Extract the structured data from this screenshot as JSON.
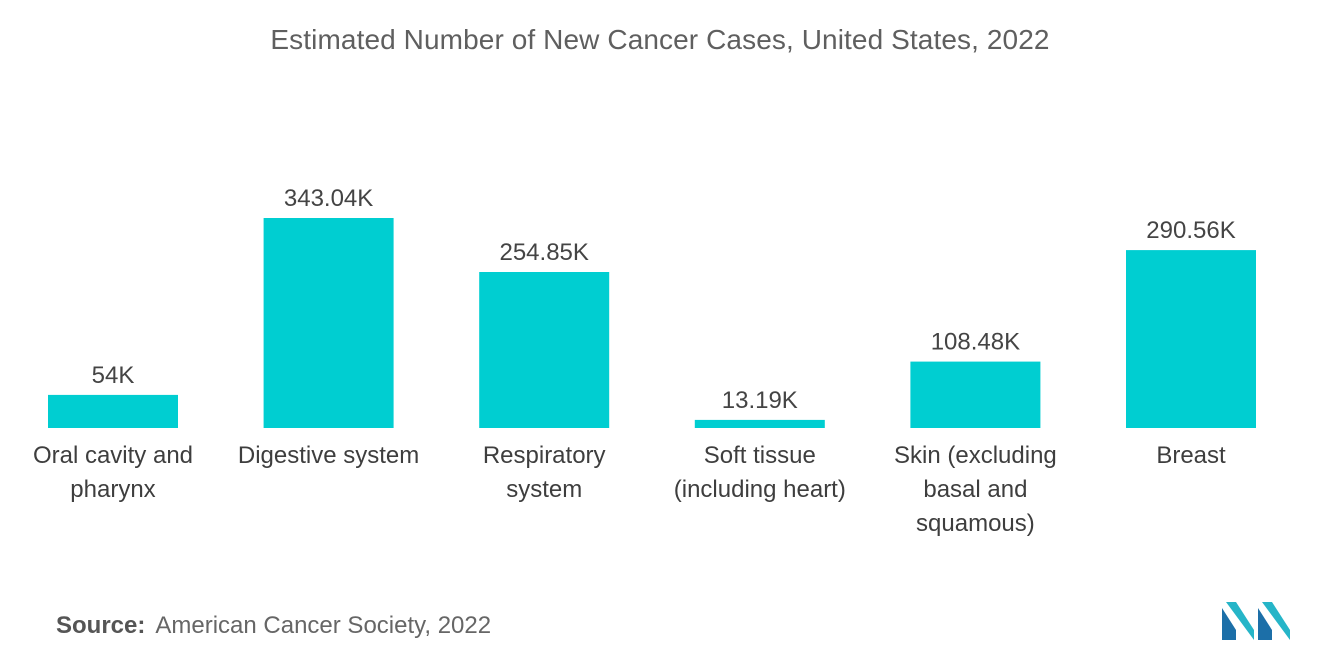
{
  "chart_data": {
    "type": "bar",
    "title": "Estimated Number of New Cancer Cases, United States, 2022",
    "categories": [
      [
        "Oral cavity and",
        "pharynx"
      ],
      [
        "Digestive system"
      ],
      [
        "Respiratory",
        "system"
      ],
      [
        "Soft tissue",
        "(including heart)"
      ],
      [
        "Skin (excluding",
        "basal and",
        "squamous)"
      ],
      [
        "Breast"
      ]
    ],
    "values": [
      54,
      343.04,
      254.85,
      13.19,
      108.48,
      290.56
    ],
    "value_labels": [
      "54K",
      "343.04K",
      "254.85K",
      "13.19K",
      "108.48K",
      "290.56K"
    ],
    "xlabel": "",
    "ylabel": "",
    "ylim": [
      0,
      343.04
    ],
    "grid": false,
    "legend": "none",
    "bar_color": "#00ced1"
  },
  "source": {
    "label": "Source:",
    "text": "American Cancer Society, 2022"
  },
  "logo": {
    "icon": "mordor-intelligence-logo-icon",
    "colors": [
      "#1c6fa8",
      "#26b5c8"
    ]
  }
}
